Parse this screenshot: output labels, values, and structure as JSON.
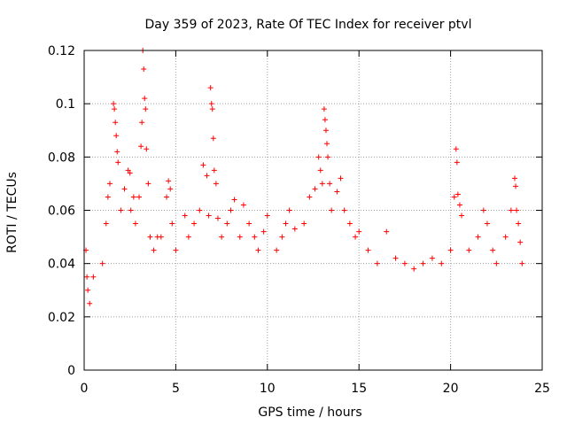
{
  "chart_data": {
    "type": "scatter",
    "title": "Day 359 of 2023, Rate Of TEC Index for receiver ptvl",
    "xlabel": "GPS time / hours",
    "ylabel": "ROTI / TECUs",
    "xlim": [
      0,
      25
    ],
    "ylim": [
      0,
      0.12
    ],
    "x_ticks": [
      "0",
      "5",
      "10",
      "15",
      "20",
      "25"
    ],
    "y_ticks": [
      "0",
      "0.02",
      "0.04",
      "0.06",
      "0.08",
      "0.1",
      "0.12"
    ],
    "grid": true,
    "marker": "+",
    "color": "#ff0000",
    "series": [
      {
        "name": "ROTI",
        "points": [
          [
            0.1,
            0.045
          ],
          [
            0.15,
            0.035
          ],
          [
            0.2,
            0.03
          ],
          [
            0.3,
            0.025
          ],
          [
            0.5,
            0.035
          ],
          [
            1.0,
            0.04
          ],
          [
            1.2,
            0.055
          ],
          [
            1.3,
            0.065
          ],
          [
            1.4,
            0.07
          ],
          [
            1.6,
            0.1
          ],
          [
            1.65,
            0.098
          ],
          [
            1.7,
            0.093
          ],
          [
            1.75,
            0.088
          ],
          [
            1.8,
            0.082
          ],
          [
            1.85,
            0.078
          ],
          [
            2.0,
            0.06
          ],
          [
            2.2,
            0.068
          ],
          [
            2.4,
            0.075
          ],
          [
            2.5,
            0.074
          ],
          [
            2.55,
            0.06
          ],
          [
            2.7,
            0.065
          ],
          [
            2.8,
            0.055
          ],
          [
            3.0,
            0.065
          ],
          [
            3.1,
            0.084
          ],
          [
            3.15,
            0.093
          ],
          [
            3.2,
            0.12
          ],
          [
            3.25,
            0.113
          ],
          [
            3.3,
            0.102
          ],
          [
            3.35,
            0.098
          ],
          [
            3.4,
            0.083
          ],
          [
            3.5,
            0.07
          ],
          [
            3.6,
            0.05
          ],
          [
            3.8,
            0.045
          ],
          [
            4.0,
            0.05
          ],
          [
            4.2,
            0.05
          ],
          [
            4.5,
            0.065
          ],
          [
            4.6,
            0.071
          ],
          [
            4.7,
            0.068
          ],
          [
            4.8,
            0.055
          ],
          [
            5.0,
            0.045
          ],
          [
            5.5,
            0.058
          ],
          [
            5.7,
            0.05
          ],
          [
            6.0,
            0.055
          ],
          [
            6.3,
            0.06
          ],
          [
            6.5,
            0.077
          ],
          [
            6.7,
            0.073
          ],
          [
            6.8,
            0.058
          ],
          [
            6.9,
            0.106
          ],
          [
            6.95,
            0.1
          ],
          [
            7.0,
            0.098
          ],
          [
            7.05,
            0.087
          ],
          [
            7.1,
            0.075
          ],
          [
            7.2,
            0.07
          ],
          [
            7.3,
            0.057
          ],
          [
            7.5,
            0.05
          ],
          [
            7.8,
            0.055
          ],
          [
            8.0,
            0.06
          ],
          [
            8.2,
            0.064
          ],
          [
            8.5,
            0.05
          ],
          [
            8.7,
            0.062
          ],
          [
            9.0,
            0.055
          ],
          [
            9.3,
            0.05
          ],
          [
            9.5,
            0.045
          ],
          [
            9.8,
            0.052
          ],
          [
            10.0,
            0.058
          ],
          [
            10.5,
            0.045
          ],
          [
            10.8,
            0.05
          ],
          [
            11.0,
            0.055
          ],
          [
            11.2,
            0.06
          ],
          [
            11.5,
            0.053
          ],
          [
            12.0,
            0.055
          ],
          [
            12.3,
            0.065
          ],
          [
            12.6,
            0.068
          ],
          [
            12.8,
            0.08
          ],
          [
            12.9,
            0.075
          ],
          [
            13.0,
            0.07
          ],
          [
            13.1,
            0.098
          ],
          [
            13.15,
            0.094
          ],
          [
            13.2,
            0.09
          ],
          [
            13.25,
            0.085
          ],
          [
            13.3,
            0.08
          ],
          [
            13.4,
            0.07
          ],
          [
            13.5,
            0.06
          ],
          [
            13.8,
            0.067
          ],
          [
            14.0,
            0.072
          ],
          [
            14.2,
            0.06
          ],
          [
            14.5,
            0.055
          ],
          [
            14.8,
            0.05
          ],
          [
            15.0,
            0.052
          ],
          [
            15.5,
            0.045
          ],
          [
            16.0,
            0.04
          ],
          [
            16.5,
            0.052
          ],
          [
            17.0,
            0.042
          ],
          [
            17.5,
            0.04
          ],
          [
            18.0,
            0.038
          ],
          [
            18.5,
            0.04
          ],
          [
            19.0,
            0.042
          ],
          [
            19.5,
            0.04
          ],
          [
            20.0,
            0.045
          ],
          [
            20.2,
            0.065
          ],
          [
            20.3,
            0.083
          ],
          [
            20.35,
            0.078
          ],
          [
            20.4,
            0.066
          ],
          [
            20.5,
            0.062
          ],
          [
            20.6,
            0.058
          ],
          [
            21.0,
            0.045
          ],
          [
            21.5,
            0.05
          ],
          [
            21.8,
            0.06
          ],
          [
            22.0,
            0.055
          ],
          [
            22.3,
            0.045
          ],
          [
            22.5,
            0.04
          ],
          [
            23.0,
            0.05
          ],
          [
            23.3,
            0.06
          ],
          [
            23.5,
            0.072
          ],
          [
            23.55,
            0.069
          ],
          [
            23.6,
            0.06
          ],
          [
            23.7,
            0.055
          ],
          [
            23.8,
            0.048
          ],
          [
            23.9,
            0.04
          ]
        ]
      }
    ]
  }
}
